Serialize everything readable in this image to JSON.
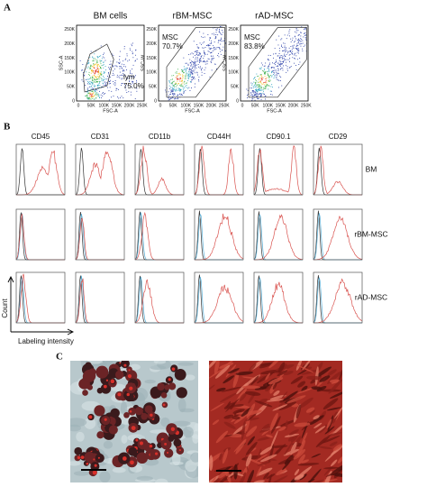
{
  "panel_a": {
    "label": "A",
    "plots": [
      {
        "title": "BM cells",
        "x_label": "FSC-A",
        "y_label": "SSC-A",
        "gate": "lym",
        "percent": "75.0%"
      },
      {
        "title": "rBM-MSC",
        "x_label": "FSC-A",
        "y_label": "SSC-W",
        "gate": "MSC",
        "percent": "70.7%"
      },
      {
        "title": "rAD-MSC",
        "x_label": "FSC-A",
        "y_label": "SSC-W",
        "gate": "MSC",
        "percent": "83.8%"
      }
    ],
    "x_ticks": [
      "0",
      "50K",
      "100K",
      "150K",
      "200K",
      "250K"
    ],
    "y_ticks": [
      "0",
      "50K",
      "100K",
      "150K",
      "200K",
      "250K"
    ]
  },
  "panel_b": {
    "label": "B",
    "markers": [
      "CD45",
      "CD31",
      "CD11b",
      "CD44H",
      "CD90.1",
      "CD29"
    ],
    "rows": [
      "BM",
      "rBM-MSC",
      "rAD-MSC"
    ],
    "y_axis": "Count",
    "x_axis": "Labeling intensity"
  },
  "panel_c": {
    "label": "C"
  }
}
